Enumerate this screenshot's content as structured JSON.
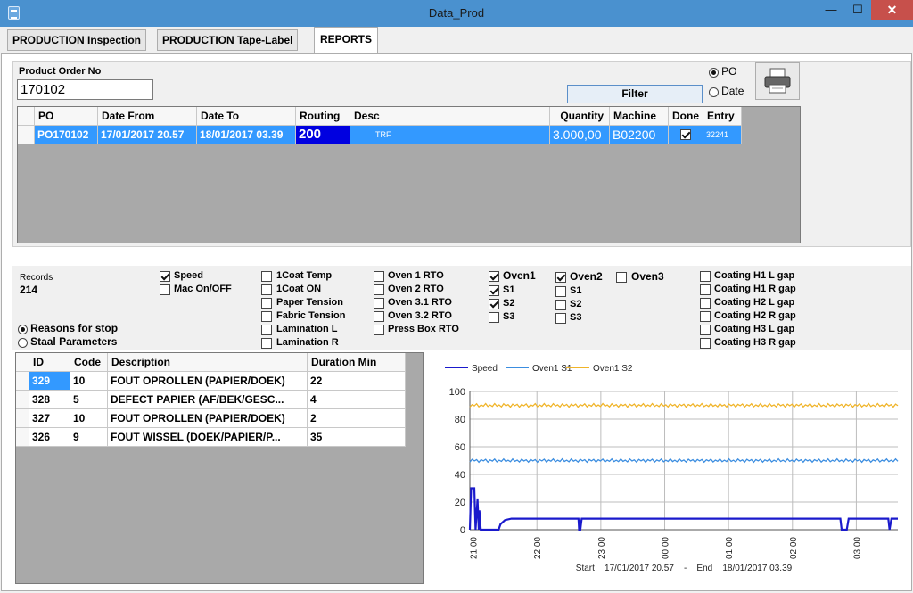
{
  "window": {
    "title": "Data_Prod",
    "min": "—",
    "max": "☐",
    "close": "✕"
  },
  "tabs": [
    {
      "label": "PRODUCTION Inspection"
    },
    {
      "label": "PRODUCTION Tape-Label"
    },
    {
      "label": "REPORTS"
    }
  ],
  "order": {
    "label": "Product Order No",
    "value": "170102",
    "filter_label": "Filter",
    "radio_po": "PO",
    "radio_date": "Date",
    "selected": "PO"
  },
  "po_table": {
    "columns": [
      "PO",
      "Date From",
      "Date To",
      "Routing",
      "Desc",
      "Quantity",
      "Machine",
      "Done",
      "Entry"
    ],
    "rows": [
      {
        "po": "PO170102",
        "date_from": "17/01/2017 20.57",
        "date_to": "18/01/2017 03.39",
        "routing": "200",
        "desc": "TRF",
        "quantity": "3.000,00",
        "machine": "B02200",
        "done": true,
        "entry": "32241"
      }
    ]
  },
  "records": {
    "label": "Records",
    "count": "214"
  },
  "mode": {
    "reasons": "Reasons for stop",
    "staal": "Staal Parameters",
    "selected": "reasons"
  },
  "params": {
    "speed": "Speed",
    "mac": "Mac On/OFF",
    "coat_temp": "1Coat Temp",
    "coat_on": "1Coat ON",
    "paper_tension": "Paper Tension",
    "fabric_tension": "Fabric Tension",
    "lamination_l": "Lamination L",
    "lamination_r": "Lamination R",
    "oven1_rto": "Oven 1 RTO",
    "oven2_rto": "Oven 2 RTO",
    "oven31_rto": "Oven 3.1 RTO",
    "oven32_rto": "Oven 3.2 RTO",
    "press_box_rto": "Press Box RTO",
    "oven1": "Oven1",
    "oven2": "Oven2",
    "oven3": "Oven3",
    "s1": "S1",
    "s2": "S2",
    "s3": "S3",
    "h1l": "Coating H1 L gap",
    "h1r": "Coating H1 R gap",
    "h2l": "Coating H2 L gap",
    "h2r": "Coating H2 R gap",
    "h3l": "Coating H3 L gap",
    "h3r": "Coating H3 R gap"
  },
  "stops_table": {
    "columns": [
      "ID",
      "Code",
      "Description",
      "Duration Min"
    ],
    "rows": [
      {
        "id": "329",
        "code": "10",
        "description": "FOUT OPROLLEN (PAPIER/DOEK)",
        "duration": "22"
      },
      {
        "id": "328",
        "code": "5",
        "description": "DEFECT PAPIER (AF/BEK/GESC...",
        "duration": "4"
      },
      {
        "id": "327",
        "code": "10",
        "description": "FOUT OPROLLEN (PAPIER/DOEK)",
        "duration": "2"
      },
      {
        "id": "326",
        "code": "9",
        "description": "FOUT WISSEL (DOEK/PAPIER/P...",
        "duration": "35"
      }
    ]
  },
  "chart_data": {
    "type": "line",
    "legend_position": "top-left",
    "grid": true,
    "ylim": [
      0,
      100
    ],
    "yticks": [
      0,
      20,
      40,
      60,
      80,
      100
    ],
    "xlim": [
      20.95,
      27.65
    ],
    "xticks": [
      {
        "v": 21,
        "label": "21.00"
      },
      {
        "v": 22,
        "label": "22.00"
      },
      {
        "v": 23,
        "label": "23.00"
      },
      {
        "v": 24,
        "label": "00.00"
      },
      {
        "v": 25,
        "label": "01.00"
      },
      {
        "v": 26,
        "label": "02.00"
      },
      {
        "v": 27,
        "label": "03.00"
      }
    ],
    "footer": "Start    17/01/2017 20.57    -    End    18/01/2017 03.39",
    "series": [
      {
        "name": "Speed",
        "color": "#1a1acc",
        "points": [
          [
            20.95,
            0
          ],
          [
            20.97,
            30
          ],
          [
            21.02,
            30
          ],
          [
            21.04,
            0
          ],
          [
            21.07,
            22
          ],
          [
            21.09,
            0
          ],
          [
            21.1,
            14
          ],
          [
            21.12,
            0
          ],
          [
            21.4,
            0
          ],
          [
            21.43,
            4
          ],
          [
            21.5,
            7
          ],
          [
            21.6,
            8
          ],
          [
            22.65,
            8
          ],
          [
            22.66,
            0
          ],
          [
            22.68,
            0
          ],
          [
            22.7,
            8
          ],
          [
            26.75,
            8
          ],
          [
            26.77,
            0
          ],
          [
            26.85,
            0
          ],
          [
            26.88,
            8
          ],
          [
            27.5,
            8
          ],
          [
            27.52,
            0
          ],
          [
            27.55,
            8
          ],
          [
            27.65,
            8
          ]
        ]
      },
      {
        "name": "Oven1 S1",
        "color": "#3b8de0",
        "base": 50,
        "amp": 1.2,
        "noisy": true
      },
      {
        "name": "Oven1 S2",
        "color": "#f0b429",
        "base": 90,
        "amp": 1.3,
        "noisy": true
      }
    ]
  }
}
